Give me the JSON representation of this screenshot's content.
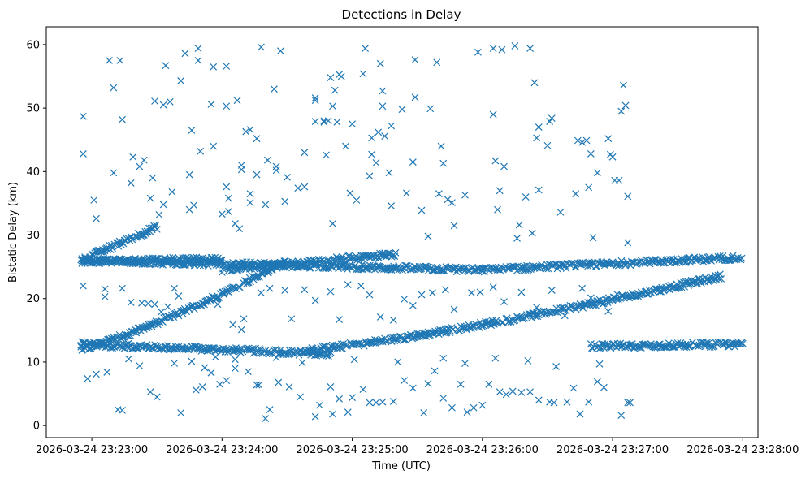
{
  "chart_data": {
    "type": "scatter",
    "title": "Detections in Delay",
    "xlabel": "Time (UTC)",
    "ylabel": "Bistatic Delay (km)",
    "marker": "x",
    "color": "#1f77b4",
    "xlim_seconds": [
      -21,
      307
    ],
    "ylim": [
      -1.9,
      62.8
    ],
    "x_reference": "2026-03-24 23:23:00",
    "x_ticks": [
      {
        "seconds": 0,
        "label": "2026-03-24 23:23:00"
      },
      {
        "seconds": 60,
        "label": "2026-03-24 23:24:00"
      },
      {
        "seconds": 120,
        "label": "2026-03-24 23:25:00"
      },
      {
        "seconds": 180,
        "label": "2026-03-24 23:26:00"
      },
      {
        "seconds": 240,
        "label": "2026-03-24 23:27:00"
      },
      {
        "seconds": 300,
        "label": "2026-03-24 23:28:00"
      }
    ],
    "y_ticks": [
      {
        "value": 0,
        "label": "0"
      },
      {
        "value": 10,
        "label": "10"
      },
      {
        "value": 20,
        "label": "20"
      },
      {
        "value": 30,
        "label": "30"
      },
      {
        "value": 40,
        "label": "40"
      },
      {
        "value": 50,
        "label": "50"
      },
      {
        "value": 60,
        "label": "60"
      }
    ],
    "time_range_seconds": [
      -5,
      300
    ],
    "tracks": [
      {
        "name": "track-a",
        "t_start": -5,
        "t_end": 110,
        "d_start": 12.8,
        "d_mid": 12.0,
        "d_end": 11.3,
        "shape": "bowl"
      },
      {
        "name": "track-b",
        "t_start": -5,
        "t_end": 90,
        "d_start": 12.2,
        "d_end": 26.0,
        "shape": "rise"
      },
      {
        "name": "track-c",
        "t_start": 100,
        "t_end": 290,
        "d_start": 12.0,
        "d_end": 23.5,
        "shape": "rise"
      },
      {
        "name": "track-d",
        "t_start": -5,
        "t_end": 30,
        "d_start": 26.0,
        "d_end": 31.3,
        "shape": "line"
      },
      {
        "name": "track-e",
        "t_start": -5,
        "t_end": 180,
        "d_start": 26.0,
        "d_end": 24.5,
        "shape": "line"
      },
      {
        "name": "track-f",
        "t_start": 180,
        "t_end": 300,
        "d_start": 24.5,
        "d_end": 26.5,
        "shape": "line"
      },
      {
        "name": "track-g",
        "t_start": -5,
        "t_end": 60,
        "d_start": 25.8,
        "d_end": 26.2,
        "shape": "line"
      },
      {
        "name": "track-h",
        "t_start": 60,
        "t_end": 140,
        "d_start": 24.5,
        "d_end": 27.0,
        "shape": "line"
      },
      {
        "name": "track-i",
        "t_start": 230,
        "t_end": 300,
        "d_start": 12.5,
        "d_end": 12.8,
        "shape": "line"
      }
    ],
    "outliers": [
      [
        -4,
        42.8
      ],
      [
        -4,
        48.7
      ],
      [
        1,
        35.5
      ],
      [
        2,
        32.6
      ],
      [
        8,
        57.5
      ],
      [
        10,
        53.2
      ],
      [
        10,
        39.8
      ],
      [
        13,
        57.5
      ],
      [
        14,
        48.2
      ],
      [
        18,
        38.2
      ],
      [
        19,
        42.3
      ],
      [
        22,
        40.8
      ],
      [
        24,
        41.8
      ],
      [
        27,
        35.8
      ],
      [
        28,
        39.0
      ],
      [
        29,
        51.1
      ],
      [
        31,
        33.2
      ],
      [
        33,
        50.5
      ],
      [
        33,
        34.8
      ],
      [
        34,
        56.7
      ],
      [
        36,
        51.0
      ],
      [
        37,
        36.8
      ],
      [
        41,
        54.3
      ],
      [
        43,
        58.6
      ],
      [
        45,
        34.0
      ],
      [
        45,
        39.5
      ],
      [
        46,
        46.5
      ],
      [
        47,
        34.7
      ],
      [
        49,
        59.4
      ],
      [
        49,
        57.5
      ],
      [
        50,
        43.2
      ],
      [
        55,
        50.6
      ],
      [
        56,
        56.5
      ],
      [
        56,
        44.0
      ],
      [
        60,
        33.3
      ],
      [
        62,
        37.6
      ],
      [
        62,
        50.3
      ],
      [
        62,
        56.6
      ],
      [
        63,
        35.8
      ],
      [
        63,
        33.7
      ],
      [
        66,
        31.8
      ],
      [
        67,
        51.2
      ],
      [
        68,
        31.0
      ],
      [
        69,
        41.0
      ],
      [
        69,
        40.3
      ],
      [
        71,
        46.3
      ],
      [
        73,
        46.6
      ],
      [
        73,
        36.5
      ],
      [
        73,
        35.1
      ],
      [
        76,
        39.5
      ],
      [
        76,
        45.2
      ],
      [
        78,
        59.6
      ],
      [
        80,
        34.8
      ],
      [
        81,
        41.8
      ],
      [
        84,
        53.0
      ],
      [
        85,
        40.8
      ],
      [
        85,
        40.2
      ],
      [
        87,
        59.0
      ],
      [
        89,
        35.3
      ],
      [
        90,
        39.1
      ],
      [
        95,
        37.4
      ],
      [
        98,
        37.6
      ],
      [
        98,
        43.0
      ],
      [
        103,
        51.6
      ],
      [
        103,
        51.2
      ],
      [
        103,
        47.9
      ],
      [
        107,
        48.0
      ],
      [
        107,
        47.8
      ],
      [
        108,
        42.6
      ],
      [
        109,
        48.0
      ],
      [
        110,
        54.8
      ],
      [
        111,
        50.3
      ],
      [
        111,
        31.8
      ],
      [
        112,
        52.8
      ],
      [
        113,
        47.8
      ],
      [
        114,
        55.3
      ],
      [
        115,
        55.0
      ],
      [
        117,
        44.0
      ],
      [
        119,
        36.6
      ],
      [
        120,
        47.5
      ],
      [
        122,
        35.5
      ],
      [
        125,
        55.4
      ],
      [
        126,
        59.4
      ],
      [
        128,
        39.3
      ],
      [
        129,
        45.3
      ],
      [
        129,
        42.7
      ],
      [
        131,
        41.4
      ],
      [
        132,
        46.2
      ],
      [
        133,
        57.0
      ],
      [
        134,
        52.7
      ],
      [
        134,
        50.3
      ],
      [
        135,
        45.6
      ],
      [
        137,
        39.8
      ],
      [
        138,
        34.6
      ],
      [
        138,
        47.2
      ],
      [
        143,
        49.8
      ],
      [
        145,
        36.6
      ],
      [
        148,
        41.5
      ],
      [
        149,
        57.6
      ],
      [
        149,
        51.7
      ],
      [
        152,
        33.9
      ],
      [
        155,
        29.8
      ],
      [
        156,
        49.9
      ],
      [
        159,
        57.2
      ],
      [
        160,
        36.5
      ],
      [
        161,
        44.0
      ],
      [
        162,
        41.3
      ],
      [
        164,
        35.6
      ],
      [
        166,
        35.1
      ],
      [
        167,
        31.5
      ],
      [
        172,
        36.3
      ],
      [
        178,
        58.8
      ],
      [
        185,
        59.4
      ],
      [
        185,
        49.0
      ],
      [
        186,
        41.7
      ],
      [
        187,
        34.0
      ],
      [
        188,
        37.0
      ],
      [
        189,
        59.2
      ],
      [
        190,
        40.8
      ],
      [
        195,
        59.8
      ],
      [
        196,
        29.5
      ],
      [
        197,
        31.6
      ],
      [
        200,
        36.0
      ],
      [
        202,
        59.4
      ],
      [
        203,
        30.3
      ],
      [
        204,
        54.0
      ],
      [
        205,
        45.3
      ],
      [
        206,
        47.0
      ],
      [
        206,
        37.1
      ],
      [
        210,
        44.1
      ],
      [
        211,
        47.9
      ],
      [
        212,
        48.4
      ],
      [
        216,
        33.6
      ],
      [
        223,
        36.5
      ],
      [
        224,
        44.9
      ],
      [
        226,
        44.6
      ],
      [
        228,
        44.9
      ],
      [
        229,
        37.5
      ],
      [
        230,
        42.8
      ],
      [
        231,
        29.6
      ],
      [
        233,
        39.8
      ],
      [
        238,
        45.2
      ],
      [
        239,
        42.7
      ],
      [
        240,
        42.3
      ],
      [
        241,
        38.6
      ],
      [
        243,
        38.6
      ],
      [
        244,
        49.5
      ],
      [
        245,
        53.6
      ],
      [
        246,
        50.4
      ],
      [
        247,
        36.1
      ],
      [
        247,
        28.8
      ],
      [
        -4,
        22.0
      ],
      [
        6,
        21.5
      ],
      [
        6,
        20.3
      ],
      [
        14,
        21.6
      ],
      [
        18,
        19.4
      ],
      [
        23,
        19.3
      ],
      [
        26,
        19.2
      ],
      [
        29,
        19.1
      ],
      [
        32,
        17.9
      ],
      [
        35,
        18.7
      ],
      [
        38,
        21.6
      ],
      [
        40,
        20.4
      ],
      [
        42,
        17.6
      ],
      [
        50,
        19.0
      ],
      [
        58,
        19.1
      ],
      [
        65,
        15.9
      ],
      [
        69,
        15.1
      ],
      [
        70,
        16.8
      ],
      [
        78,
        20.9
      ],
      [
        82,
        21.6
      ],
      [
        89,
        21.3
      ],
      [
        92,
        16.8
      ],
      [
        98,
        21.4
      ],
      [
        103,
        19.7
      ],
      [
        110,
        21.1
      ],
      [
        114,
        16.7
      ],
      [
        118,
        22.2
      ],
      [
        124,
        22.0
      ],
      [
        128,
        20.6
      ],
      [
        133,
        17.1
      ],
      [
        139,
        16.6
      ],
      [
        144,
        19.9
      ],
      [
        148,
        18.9
      ],
      [
        152,
        20.6
      ],
      [
        157,
        20.9
      ],
      [
        163,
        21.4
      ],
      [
        167,
        18.3
      ],
      [
        175,
        20.9
      ],
      [
        179,
        21.0
      ],
      [
        185,
        21.8
      ],
      [
        190,
        19.5
      ],
      [
        198,
        21.0
      ],
      [
        205,
        18.6
      ],
      [
        212,
        21.3
      ],
      [
        218,
        17.3
      ],
      [
        226,
        21.6
      ],
      [
        230,
        20.1
      ],
      [
        238,
        18.0
      ],
      [
        242,
        20.7
      ],
      [
        -2,
        7.4
      ],
      [
        2,
        8.1
      ],
      [
        7,
        8.4
      ],
      [
        12,
        2.5
      ],
      [
        14,
        2.4
      ],
      [
        27,
        5.3
      ],
      [
        30,
        4.5
      ],
      [
        41,
        2.0
      ],
      [
        48,
        5.6
      ],
      [
        51,
        6.1
      ],
      [
        55,
        8.3
      ],
      [
        59,
        6.5
      ],
      [
        62,
        7.1
      ],
      [
        66,
        9.0
      ],
      [
        72,
        8.5
      ],
      [
        76,
        6.4
      ],
      [
        77,
        6.4
      ],
      [
        80,
        1.1
      ],
      [
        82,
        2.5
      ],
      [
        86,
        6.8
      ],
      [
        91,
        6.1
      ],
      [
        96,
        4.5
      ],
      [
        103,
        1.4
      ],
      [
        105,
        3.2
      ],
      [
        110,
        6.1
      ],
      [
        111,
        1.8
      ],
      [
        114,
        4.2
      ],
      [
        118,
        2.1
      ],
      [
        120,
        4.4
      ],
      [
        125,
        5.7
      ],
      [
        128,
        3.6
      ],
      [
        131,
        3.6
      ],
      [
        134,
        3.7
      ],
      [
        139,
        3.8
      ],
      [
        144,
        7.1
      ],
      [
        148,
        5.9
      ],
      [
        153,
        2.0
      ],
      [
        155,
        6.6
      ],
      [
        158,
        8.6
      ],
      [
        162,
        4.3
      ],
      [
        166,
        2.8
      ],
      [
        170,
        6.5
      ],
      [
        173,
        2.1
      ],
      [
        176,
        2.8
      ],
      [
        180,
        3.2
      ],
      [
        183,
        6.5
      ],
      [
        188,
        5.3
      ],
      [
        191,
        4.9
      ],
      [
        194,
        5.4
      ],
      [
        198,
        5.2
      ],
      [
        202,
        5.3
      ],
      [
        206,
        4.0
      ],
      [
        211,
        3.7
      ],
      [
        213,
        3.6
      ],
      [
        219,
        3.7
      ],
      [
        222,
        5.9
      ],
      [
        225,
        1.8
      ],
      [
        229,
        3.7
      ],
      [
        233,
        6.9
      ],
      [
        236,
        6.0
      ],
      [
        244,
        1.6
      ],
      [
        247,
        3.6
      ],
      [
        248,
        3.6
      ],
      [
        17,
        10.5
      ],
      [
        22,
        9.4
      ],
      [
        38,
        9.8
      ],
      [
        46,
        10.1
      ],
      [
        52,
        9.1
      ],
      [
        57,
        10.8
      ],
      [
        66,
        10.4
      ],
      [
        85,
        10.7
      ],
      [
        97,
        9.9
      ],
      [
        121,
        10.4
      ],
      [
        141,
        10.0
      ],
      [
        162,
        10.6
      ],
      [
        172,
        9.8
      ],
      [
        186,
        10.6
      ],
      [
        201,
        10.2
      ],
      [
        214,
        9.3
      ],
      [
        234,
        9.7
      ]
    ]
  }
}
